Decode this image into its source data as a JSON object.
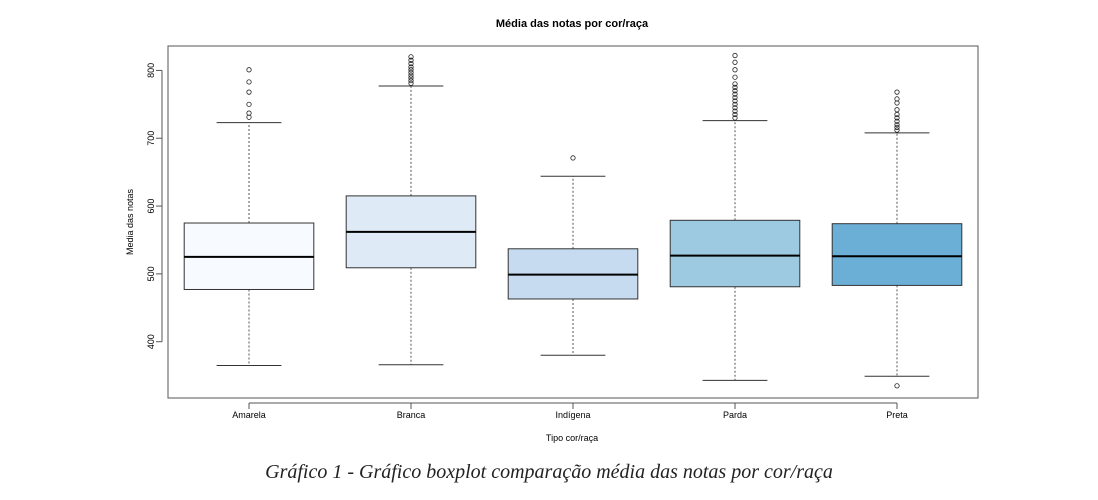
{
  "caption": "Gráfico 1 - Gráfico boxplot comparação média das notas por cor/raça",
  "chart_data": {
    "type": "boxplot",
    "title": "Média das notas por cor/raça",
    "xlabel": "Tipo cor/raça",
    "ylabel": "Media das notas",
    "ylim": [
      317,
      836
    ],
    "yticks": [
      400,
      500,
      600,
      700,
      800
    ],
    "grid": false,
    "legend": "none",
    "categories": [
      "Amarela",
      "Branca",
      "Indígena",
      "Parda",
      "Preta"
    ],
    "colors": [
      "#f7fbff",
      "#deebf7",
      "#c6dbef",
      "#9ecae1",
      "#6baed6"
    ],
    "boxes": [
      {
        "name": "Amarela",
        "whisker_low": 365,
        "q1": 477,
        "median": 525,
        "q3": 575,
        "whisker_high": 723,
        "outliers": [
          731,
          737,
          750,
          768,
          783,
          801
        ]
      },
      {
        "name": "Branca",
        "whisker_low": 366,
        "q1": 509,
        "median": 562,
        "q3": 615,
        "whisker_high": 777,
        "outliers": [
          781,
          785,
          789,
          793,
          797,
          801,
          805,
          810,
          815,
          820
        ]
      },
      {
        "name": "Indígena",
        "whisker_low": 380,
        "q1": 463,
        "median": 499,
        "q3": 537,
        "whisker_high": 644,
        "outliers": [
          671
        ]
      },
      {
        "name": "Parda",
        "whisker_low": 343,
        "q1": 481,
        "median": 527,
        "q3": 579,
        "whisker_high": 726,
        "outliers": [
          730,
          735,
          740,
          745,
          750,
          755,
          760,
          765,
          770,
          775,
          780,
          790,
          801,
          812,
          822
        ]
      },
      {
        "name": "Preta",
        "whisker_low": 349,
        "q1": 483,
        "median": 526,
        "q3": 574,
        "whisker_high": 708,
        "outliers": [
          335,
          712,
          716,
          720,
          725,
          730,
          735,
          742,
          752,
          758,
          768
        ]
      }
    ]
  }
}
